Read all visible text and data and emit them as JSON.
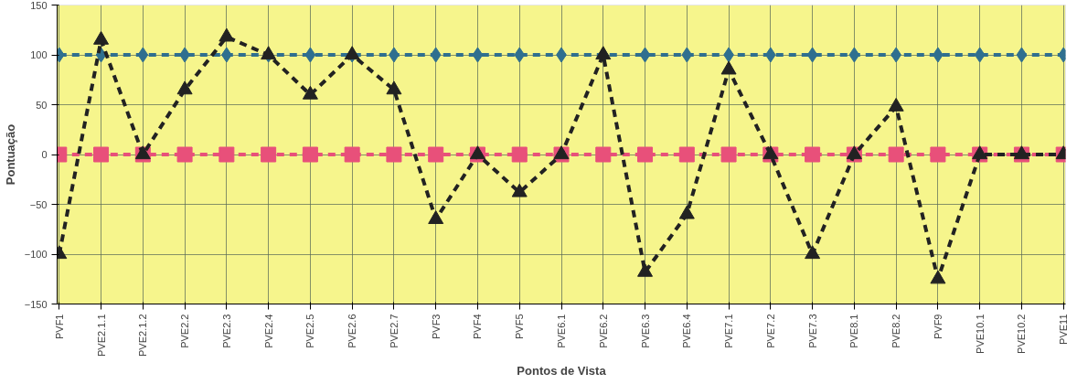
{
  "chart_data": {
    "type": "line",
    "xlabel": "Pontos de Vista",
    "ylabel": "Pontuação",
    "categories": [
      "PVF1",
      "PVE2.1.1",
      "PVE2.1.2",
      "PVE2.2",
      "PVE2.3",
      "PVE2.4",
      "PVE2.5",
      "PVE2.6",
      "PVE2.7",
      "PVF3",
      "PVF4",
      "PVF5",
      "PVE6.1",
      "PVE6.2",
      "PVE6.3",
      "PVE6.4",
      "PVE7.1",
      "PVE7.2",
      "PVE7.3",
      "PVE8.1",
      "PVE8.2",
      "PVF9",
      "PVE10.1",
      "PVE10.2",
      "PVE11"
    ],
    "series": [
      {
        "color": "#2f6f8f",
        "marker": "diamond",
        "values": [
          100,
          100,
          100,
          100,
          100,
          100,
          100,
          100,
          100,
          100,
          100,
          100,
          100,
          100,
          100,
          100,
          100,
          100,
          100,
          100,
          100,
          100,
          100,
          100,
          100
        ]
      },
      {
        "color": "#e8507a",
        "marker": "square",
        "values": [
          0,
          0,
          0,
          0,
          0,
          0,
          0,
          0,
          0,
          0,
          0,
          0,
          0,
          0,
          0,
          0,
          0,
          0,
          0,
          0,
          0,
          0,
          0,
          0,
          0
        ]
      },
      {
        "color": "#222222",
        "marker": "triangle",
        "values": [
          -100,
          115,
          0,
          65,
          118,
          100,
          60,
          100,
          65,
          -65,
          0,
          -38,
          0,
          100,
          -118,
          -60,
          85,
          0,
          -100,
          0,
          48,
          -125,
          0,
          0,
          0
        ]
      }
    ],
    "line_style": "dashed",
    "ylim": [
      -150,
      150
    ],
    "yticks": [
      -150,
      -100,
      -50,
      0,
      50,
      100,
      150
    ],
    "grid": true
  }
}
